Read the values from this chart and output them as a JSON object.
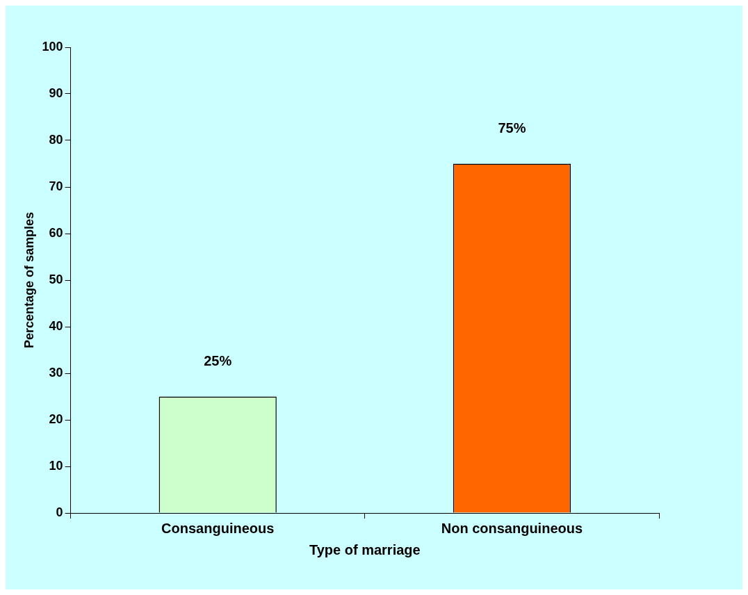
{
  "chart_data": {
    "type": "bar",
    "xlabel": "Type of marriage",
    "ylabel": "Percentage of samples",
    "categories": [
      "Consanguineous",
      "Non consanguineous"
    ],
    "values": [
      25,
      75
    ],
    "colors": [
      "#ccffcc",
      "#ff6600"
    ],
    "value_labels": [
      "25%",
      "75%"
    ],
    "ylim": [
      0,
      100
    ],
    "yticks": [
      0,
      10,
      20,
      30,
      40,
      50,
      60,
      70,
      80,
      90,
      100
    ],
    "grid": false,
    "legend": false
  }
}
